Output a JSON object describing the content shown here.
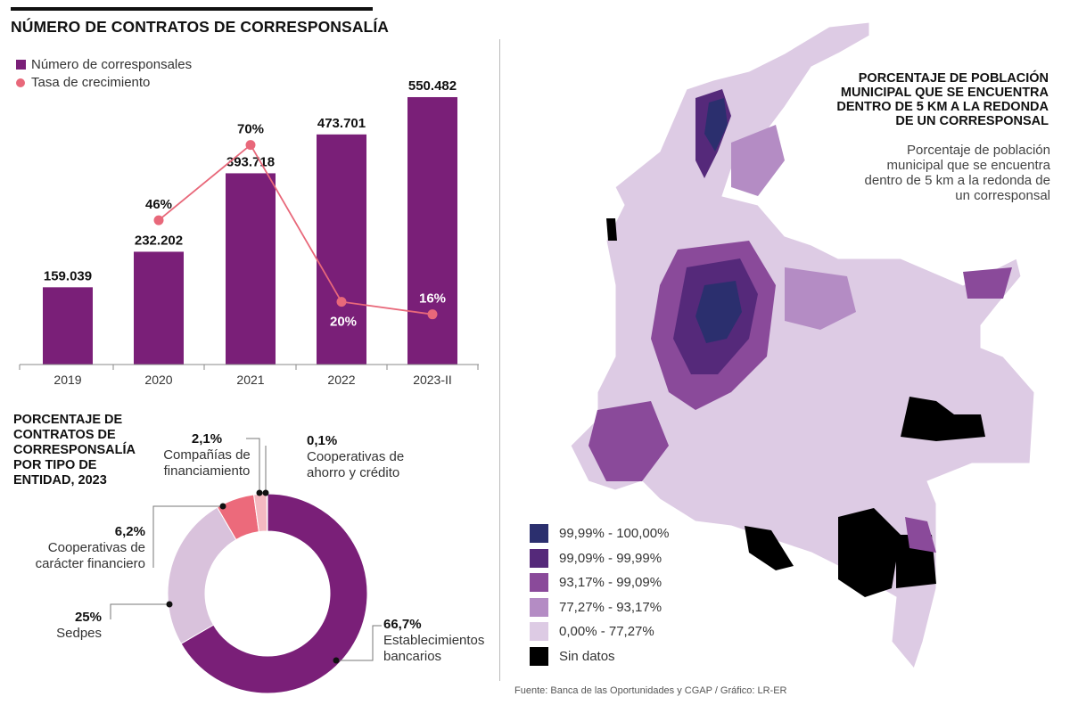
{
  "bar_section": {
    "title": "NÚMERO DE CONTRATOS DE CORRESPONSALÍA",
    "legend": [
      "Número de corresponsales",
      "Tasa de crecimiento"
    ]
  },
  "donut_section": {
    "title": "PORCENTAJE DE CONTRATOS DE CORRESPONSALÍA POR TIPO DE ENTIDAD, 2023",
    "labels": [
      {
        "pct": "66,7%",
        "line1": "Establecimientos",
        "line2": "bancarios"
      },
      {
        "pct": "25%",
        "line1": "Sedpes",
        "line2": ""
      },
      {
        "pct": "6,2%",
        "line1": "Cooperativas de",
        "line2": "carácter financiero"
      },
      {
        "pct": "2,1%",
        "line1": "Compañías de",
        "line2": "financiamiento"
      },
      {
        "pct": "0,1%",
        "line1": "Cooperativas de",
        "line2": "ahorro y crédito"
      }
    ]
  },
  "map_section": {
    "title": "PORCENTAJE DE POBLACIÓN MUNICIPAL QUE SE ENCUENTRA DENTRO DE 5 KM A LA REDONDA DE UN CORRESPONSAL",
    "subtitle": "Porcentaje de población municipal que se encuentra dentro de 5 km a la redonda de un corresponsal",
    "legend": [
      {
        "label": "99,99% - 100,00%",
        "color": "#2b2f6e"
      },
      {
        "label": "99,09% - 99,99%",
        "color": "#55297a"
      },
      {
        "label": "93,17% - 99,09%",
        "color": "#8a4a9a"
      },
      {
        "label": "77,27% - 93,17%",
        "color": "#b48cc4"
      },
      {
        "label": "0,00% - 77,27%",
        "color": "#ddcbe4"
      },
      {
        "label": "Sin datos",
        "color": "#000000"
      }
    ]
  },
  "source": "Fuente: Banca de las Oportunidades y CGAP / Gráfico: LR-ER",
  "colors": {
    "bar": "#7a1f78",
    "line": "#e8687a",
    "donut_light": "#d9c2dc",
    "donut_pink": "#ec6a7b",
    "donut_pale": "#f4b9c1"
  },
  "chart_data": [
    {
      "type": "bar",
      "title": "NÚMERO DE CONTRATOS DE CORRESPONSALÍA",
      "categories": [
        "2019",
        "2020",
        "2021",
        "2022",
        "2023-II"
      ],
      "series": [
        {
          "name": "Número de corresponsales",
          "values": [
            159039,
            232202,
            393718,
            473701,
            550482
          ],
          "labels": [
            "159.039",
            "232.202",
            "393.718",
            "473.701",
            "550.482"
          ]
        },
        {
          "name": "Tasa de crecimiento",
          "type": "line",
          "x": [
            "2020",
            "2021",
            "2022",
            "2023-II"
          ],
          "values": [
            46,
            70,
            20,
            16
          ],
          "labels": [
            "46%",
            "70%",
            "20%",
            "16%"
          ]
        }
      ],
      "ylim": [
        0,
        600000
      ]
    },
    {
      "type": "pie",
      "title": "PORCENTAJE DE CONTRATOS DE CORRESPONSALÍA POR TIPO DE ENTIDAD, 2023",
      "categories": [
        "Establecimientos bancarios",
        "Sedpes",
        "Cooperativas de carácter financiero",
        "Compañías de financiamiento",
        "Cooperativas de ahorro y crédito"
      ],
      "values": [
        66.7,
        25,
        6.2,
        2.1,
        0.1
      ]
    }
  ]
}
